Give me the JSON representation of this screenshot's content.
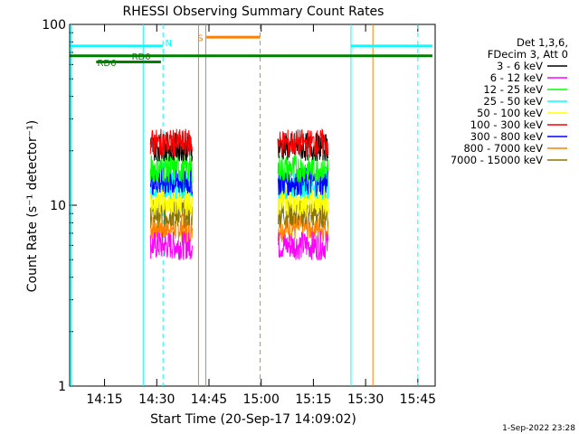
{
  "chart_data": {
    "type": "line",
    "title": "RHESSI Observing Summary Count Rates",
    "ylabel": "Count Rate (s⁻¹ detector⁻¹)",
    "xlabel": "Start Time (20-Sep-17 14:09:02)",
    "y_scale": "log",
    "ylim": [
      1,
      100
    ],
    "xlim_minutes": [
      14.083,
      15.833
    ],
    "x_ticks": [
      {
        "label": "14:15",
        "t": 14.25
      },
      {
        "label": "14:30",
        "t": 14.5
      },
      {
        "label": "14:45",
        "t": 14.75
      },
      {
        "label": "15:00",
        "t": 15.0
      },
      {
        "label": "15:15",
        "t": 15.25
      },
      {
        "label": "15:30",
        "t": 15.5
      },
      {
        "label": "15:45",
        "t": 15.75
      }
    ],
    "y_ticks": [
      {
        "label": "1",
        "v": 1
      },
      {
        "label": "10",
        "v": 10
      },
      {
        "label": "100",
        "v": 100
      }
    ],
    "legend_header": [
      "Det 1,3,6,",
      "FDecim 3, Att 0"
    ],
    "series": [
      {
        "name": "3 - 6 keV",
        "color": "#000000",
        "level": 21
      },
      {
        "name": "6 - 12 keV",
        "color": "#ff00ff",
        "level": 6
      },
      {
        "name": "12 - 25 keV",
        "color": "#00ff00",
        "level": 16
      },
      {
        "name": "25 - 50 keV",
        "color": "#00ffff",
        "level": 13
      },
      {
        "name": "50 - 100 keV",
        "color": "#ffff00",
        "level": 10.5
      },
      {
        "name": "100 - 300 keV",
        "color": "#ff0000",
        "level": 22
      },
      {
        "name": "300 - 800 keV",
        "color": "#0000ff",
        "level": 13.5
      },
      {
        "name": "800 - 7000 keV",
        "color": "#ff8000",
        "level": 7.5
      },
      {
        "name": "7000 - 15000 keV",
        "color": "#8b7500",
        "level": 9
      }
    ],
    "intervals": [
      [
        14.47,
        14.67
      ],
      [
        15.08,
        15.32
      ]
    ],
    "flags": [
      {
        "label": "N",
        "color": "#00ffff",
        "level": 76
      },
      {
        "label": "RD6",
        "color": "#008000",
        "level": 62
      },
      {
        "label": "RD0",
        "color": "#008000",
        "level": 67
      },
      {
        "label": "S",
        "color": "#ff8000",
        "level": 85
      }
    ],
    "footer": "1-Sep-2022 23:28"
  }
}
